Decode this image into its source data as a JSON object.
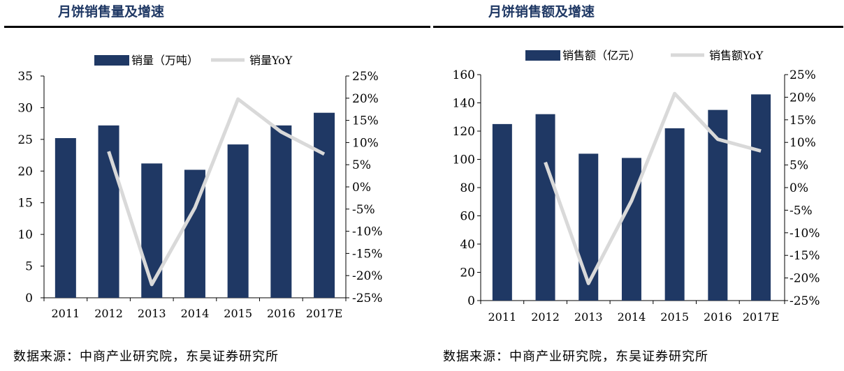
{
  "chart_data": [
    {
      "type": "bar+line",
      "title": "月饼销售量及增速",
      "categories": [
        "2011",
        "2012",
        "2013",
        "2014",
        "2015",
        "2016",
        "2017E"
      ],
      "series": [
        {
          "name": "销量（万吨）",
          "type": "bar",
          "axis": "left",
          "color": "#1f3864",
          "values": [
            25.2,
            27.2,
            21.2,
            20.2,
            24.2,
            27.2,
            29.2
          ]
        },
        {
          "name": "销量YoY",
          "type": "line",
          "axis": "right",
          "color": "#d9d9d9",
          "values": [
            null,
            8.0,
            -22.0,
            -4.7,
            19.8,
            12.4,
            7.4
          ]
        }
      ],
      "yleft": {
        "min": 0,
        "max": 35,
        "step": 5,
        "ticks": [
          "0",
          "5",
          "10",
          "15",
          "20",
          "25",
          "30",
          "35"
        ]
      },
      "yright": {
        "min": -25,
        "max": 25,
        "step": 5,
        "ticks": [
          "-25%",
          "-20%",
          "-15%",
          "-10%",
          "-5%",
          "0%",
          "5%",
          "10%",
          "15%",
          "20%",
          "25%"
        ]
      },
      "legend": "top",
      "source": "数据来源：中商产业研究院，东吴证券研究所"
    },
    {
      "type": "bar+line",
      "title": "月饼销售额及增速",
      "categories": [
        "2011",
        "2012",
        "2013",
        "2014",
        "2015",
        "2016",
        "2017E"
      ],
      "series": [
        {
          "name": "销售额（亿元）",
          "type": "bar",
          "axis": "left",
          "color": "#1f3864",
          "values": [
            125,
            132,
            104,
            101,
            122,
            135,
            146
          ]
        },
        {
          "name": "销售额YoY",
          "type": "line",
          "axis": "right",
          "color": "#d9d9d9",
          "values": [
            null,
            5.6,
            -21.2,
            -2.9,
            20.8,
            10.7,
            8.1
          ]
        }
      ],
      "yleft": {
        "min": 0,
        "max": 160,
        "step": 20,
        "ticks": [
          "0",
          "20",
          "40",
          "60",
          "80",
          "100",
          "120",
          "140",
          "160"
        ]
      },
      "yright": {
        "min": -25,
        "max": 25,
        "step": 5,
        "ticks": [
          "-25%",
          "-20%",
          "-15%",
          "-10%",
          "-5%",
          "0%",
          "5%",
          "10%",
          "15%",
          "20%",
          "25%"
        ]
      },
      "legend": "top",
      "source": "数据来源：中商产业研究院，东吴证券研究所"
    }
  ]
}
